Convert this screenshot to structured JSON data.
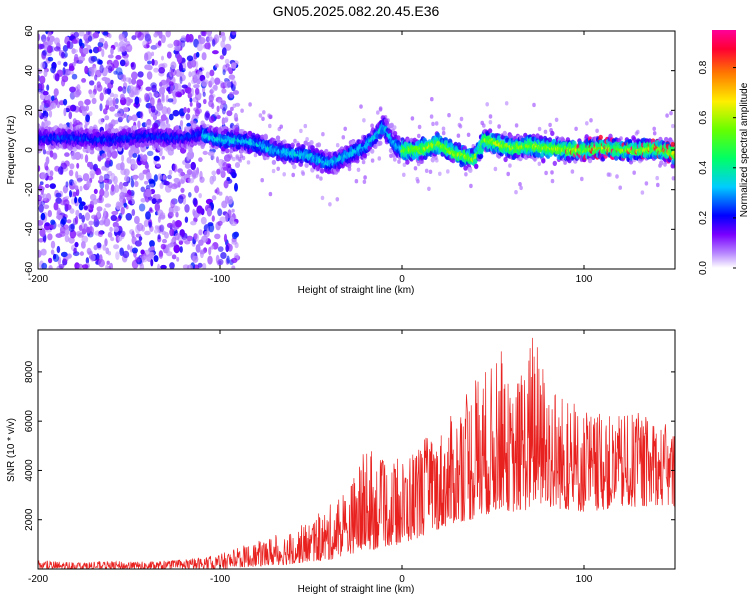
{
  "title": "GN05.2025.082.20.45.E36",
  "chart_data": [
    {
      "type": "heatmap",
      "xlabel": "Height of straight line (km)",
      "ylabel": "Frequency (Hz)",
      "xlim": [
        -200,
        150
      ],
      "ylim": [
        -60,
        60
      ],
      "xticks": [
        -200,
        -100,
        0,
        100
      ],
      "yticks": [
        -60,
        -40,
        -20,
        0,
        20,
        40,
        60
      ],
      "colorbar": {
        "label": "Normalized spectral amplitude",
        "range": [
          0,
          0.95
        ],
        "ticks": [
          0.0,
          0.2,
          0.4,
          0.6,
          0.8
        ],
        "tick_labels": [
          "0.0",
          "0.2",
          "0.4",
          "0.6",
          "0.8"
        ]
      },
      "ridge": {
        "x": [
          -200,
          -180,
          -160,
          -140,
          -120,
          -110,
          -100,
          -90,
          -80,
          -70,
          -60,
          -50,
          -40,
          -30,
          -20,
          -15,
          -10,
          -5,
          0,
          10,
          20,
          30,
          40,
          45,
          50,
          60,
          70,
          80,
          90,
          100,
          110,
          120,
          130,
          140,
          150
        ],
        "y": [
          6,
          6,
          5,
          7,
          6,
          8,
          5,
          5,
          3,
          0,
          -2,
          -3,
          -7,
          -3,
          2,
          6,
          12,
          4,
          0,
          0,
          3,
          -2,
          -5,
          5,
          4,
          1,
          2,
          1,
          0,
          0,
          1,
          0,
          0,
          1,
          -2
        ]
      },
      "grid": false,
      "legend": "none"
    },
    {
      "type": "line",
      "xlabel": "Height of straight line (km)",
      "ylabel": "SNR (10 * v/v)",
      "xlim": [
        -200,
        150
      ],
      "ylim": [
        0,
        9700
      ],
      "xticks": [
        -200,
        -100,
        0,
        100
      ],
      "yticks": [
        2000,
        4000,
        6000,
        8000
      ],
      "color": "#e8201e",
      "envelope": {
        "x": [
          -200,
          -180,
          -160,
          -140,
          -120,
          -100,
          -90,
          -80,
          -70,
          -60,
          -50,
          -40,
          -30,
          -20,
          -10,
          0,
          10,
          20,
          30,
          40,
          50,
          55,
          60,
          70,
          72,
          80,
          90,
          100,
          110,
          120,
          130,
          140,
          150
        ],
        "min": [
          0,
          0,
          0,
          0,
          0,
          0,
          50,
          100,
          150,
          200,
          300,
          350,
          600,
          700,
          900,
          1000,
          1300,
          1600,
          1900,
          2000,
          2300,
          2500,
          2300,
          2400,
          2600,
          2500,
          2400,
          2300,
          2400,
          2500,
          2500,
          2600,
          2500
        ],
        "max": [
          350,
          300,
          320,
          300,
          380,
          600,
          900,
          1100,
          1400,
          1600,
          2000,
          2600,
          3200,
          5000,
          4400,
          4500,
          5300,
          5600,
          6500,
          8000,
          8300,
          9000,
          7000,
          9200,
          9700,
          8000,
          7000,
          6500,
          6300,
          6200,
          6400,
          6000,
          5800
        ]
      },
      "grid": false,
      "legend": "none"
    }
  ]
}
